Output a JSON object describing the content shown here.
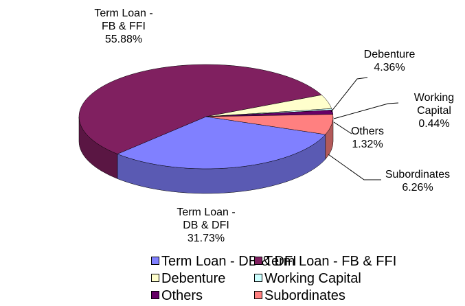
{
  "chart_data": {
    "type": "pie3d",
    "categories": [
      "Term Loan - DB & DFI",
      "Term Loan - FB & FFI",
      "Debenture",
      "Working Capital",
      "Others",
      "Subordinates"
    ],
    "values": [
      31.73,
      55.88,
      4.36,
      0.44,
      1.32,
      6.26
    ],
    "value_labels": [
      "31.73%",
      "55.88%",
      "4.36%",
      "0.44%",
      "1.32%",
      "6.26%"
    ],
    "colors": [
      "#8080ff",
      "#802060",
      "#ffffcc",
      "#ccffff",
      "#660066",
      "#ff8080"
    ],
    "legend": "bottom"
  }
}
